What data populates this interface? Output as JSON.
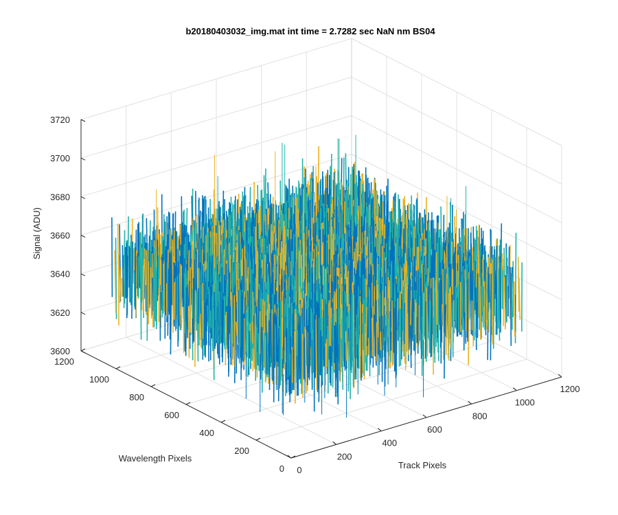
{
  "chart_data": {
    "type": "surface3d",
    "title": "b20180403032_img.mat int time = 2.7282 sec  NaN nm BS04",
    "xlabel": "Track Pixels",
    "ylabel": "Wavelength Pixels",
    "zlabel": "Signal (ADU)",
    "xlim": [
      0,
      1200
    ],
    "ylim": [
      0,
      1200
    ],
    "zlim": [
      3600,
      3720
    ],
    "xticks": [
      "0",
      "200",
      "400",
      "600",
      "800",
      "1000",
      "1200"
    ],
    "yticks": [
      "0",
      "200",
      "400",
      "600",
      "800",
      "1000",
      "1200"
    ],
    "zticks": [
      "3600",
      "3620",
      "3640",
      "3660",
      "3680",
      "3700",
      "3720"
    ],
    "data_extent": {
      "x": [
        0,
        1024
      ],
      "y": [
        0,
        1024
      ]
    },
    "signal_mean": 3650,
    "signal_range": [
      3620,
      3708
    ],
    "grid": true,
    "colors": {
      "low": "#0072bd",
      "mid": "#20b2aa",
      "high": "#edb120",
      "axis": "#262626",
      "grid": "#e0e0e0"
    }
  }
}
